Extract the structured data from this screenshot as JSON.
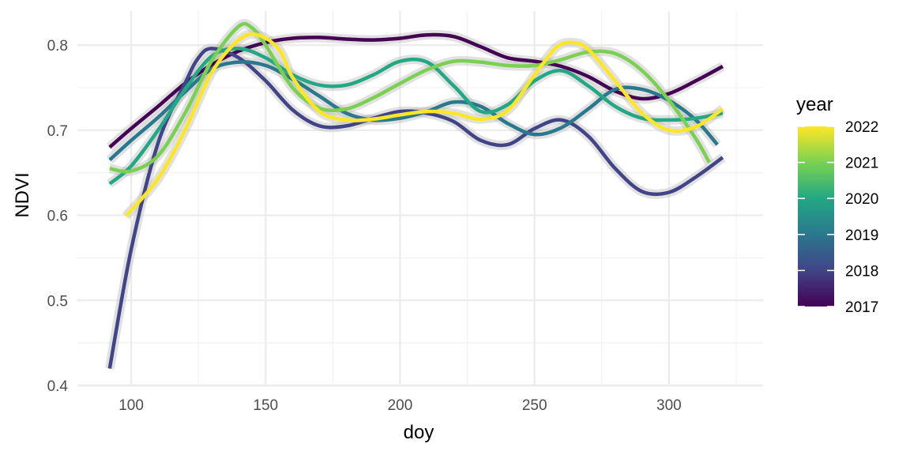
{
  "chart_data": {
    "type": "line",
    "xlabel": "doy",
    "ylabel": "NDVI",
    "xlim": [
      80,
      335
    ],
    "ylim": [
      0.4,
      0.84
    ],
    "x_ticks": [
      100,
      150,
      200,
      250,
      300
    ],
    "y_ticks": [
      0.4,
      0.5,
      0.6,
      0.7,
      0.8
    ],
    "x_tick_labels": [
      "100",
      "150",
      "200",
      "250",
      "300"
    ],
    "y_tick_labels": [
      "0.4",
      "0.5",
      "0.6",
      "0.7",
      "0.8"
    ],
    "grid": true,
    "legend": {
      "title": "year",
      "placement": "right",
      "labels": [
        "2022",
        "2021",
        "2020",
        "2019",
        "2018",
        "2017"
      ],
      "colors": [
        "#FDE725",
        "#7AD151",
        "#22A884",
        "#2A788E",
        "#414487",
        "#440154"
      ]
    },
    "series": [
      {
        "name": "2017",
        "color": "#440154",
        "points": [
          [
            92,
            0.68
          ],
          [
            100,
            0.702
          ],
          [
            110,
            0.728
          ],
          [
            120,
            0.755
          ],
          [
            130,
            0.777
          ],
          [
            140,
            0.793
          ],
          [
            150,
            0.803
          ],
          [
            160,
            0.808
          ],
          [
            170,
            0.809
          ],
          [
            180,
            0.807
          ],
          [
            190,
            0.806
          ],
          [
            200,
            0.808
          ],
          [
            210,
            0.812
          ],
          [
            220,
            0.81
          ],
          [
            230,
            0.798
          ],
          [
            240,
            0.785
          ],
          [
            250,
            0.781
          ],
          [
            260,
            0.775
          ],
          [
            270,
            0.763
          ],
          [
            280,
            0.746
          ],
          [
            290,
            0.737
          ],
          [
            300,
            0.743
          ],
          [
            310,
            0.758
          ],
          [
            320,
            0.775
          ]
        ]
      },
      {
        "name": "2018",
        "color": "#414487",
        "points": [
          [
            92,
            0.42
          ],
          [
            100,
            0.56
          ],
          [
            110,
            0.685
          ],
          [
            120,
            0.755
          ],
          [
            125,
            0.785
          ],
          [
            130,
            0.796
          ],
          [
            140,
            0.785
          ],
          [
            150,
            0.758
          ],
          [
            160,
            0.724
          ],
          [
            170,
            0.705
          ],
          [
            180,
            0.705
          ],
          [
            190,
            0.714
          ],
          [
            200,
            0.722
          ],
          [
            210,
            0.72
          ],
          [
            220,
            0.71
          ],
          [
            230,
            0.688
          ],
          [
            240,
            0.683
          ],
          [
            250,
            0.702
          ],
          [
            260,
            0.712
          ],
          [
            270,
            0.693
          ],
          [
            280,
            0.655
          ],
          [
            290,
            0.628
          ],
          [
            300,
            0.627
          ],
          [
            310,
            0.645
          ],
          [
            320,
            0.668
          ]
        ]
      },
      {
        "name": "2019",
        "color": "#2A788E",
        "points": [
          [
            92,
            0.665
          ],
          [
            100,
            0.688
          ],
          [
            110,
            0.715
          ],
          [
            120,
            0.745
          ],
          [
            130,
            0.772
          ],
          [
            140,
            0.78
          ],
          [
            150,
            0.776
          ],
          [
            160,
            0.76
          ],
          [
            170,
            0.74
          ],
          [
            180,
            0.72
          ],
          [
            190,
            0.712
          ],
          [
            200,
            0.714
          ],
          [
            210,
            0.722
          ],
          [
            220,
            0.733
          ],
          [
            230,
            0.728
          ],
          [
            240,
            0.708
          ],
          [
            250,
            0.695
          ],
          [
            260,
            0.703
          ],
          [
            270,
            0.725
          ],
          [
            280,
            0.748
          ],
          [
            290,
            0.748
          ],
          [
            300,
            0.735
          ],
          [
            310,
            0.712
          ],
          [
            318,
            0.683
          ]
        ]
      },
      {
        "name": "2020",
        "color": "#22A884",
        "points": [
          [
            92,
            0.637
          ],
          [
            100,
            0.658
          ],
          [
            110,
            0.7
          ],
          [
            120,
            0.748
          ],
          [
            130,
            0.787
          ],
          [
            140,
            0.796
          ],
          [
            150,
            0.785
          ],
          [
            160,
            0.765
          ],
          [
            170,
            0.753
          ],
          [
            180,
            0.753
          ],
          [
            190,
            0.765
          ],
          [
            200,
            0.781
          ],
          [
            210,
            0.78
          ],
          [
            220,
            0.752
          ],
          [
            230,
            0.722
          ],
          [
            240,
            0.73
          ],
          [
            250,
            0.758
          ],
          [
            260,
            0.77
          ],
          [
            270,
            0.752
          ],
          [
            280,
            0.728
          ],
          [
            290,
            0.714
          ],
          [
            300,
            0.712
          ],
          [
            310,
            0.714
          ],
          [
            320,
            0.72
          ]
        ]
      },
      {
        "name": "2021",
        "color": "#7AD151",
        "points": [
          [
            92,
            0.655
          ],
          [
            100,
            0.652
          ],
          [
            110,
            0.67
          ],
          [
            120,
            0.72
          ],
          [
            130,
            0.782
          ],
          [
            140,
            0.822
          ],
          [
            145,
            0.82
          ],
          [
            150,
            0.8
          ],
          [
            160,
            0.75
          ],
          [
            170,
            0.726
          ],
          [
            180,
            0.725
          ],
          [
            190,
            0.738
          ],
          [
            200,
            0.755
          ],
          [
            210,
            0.771
          ],
          [
            220,
            0.781
          ],
          [
            230,
            0.78
          ],
          [
            240,
            0.776
          ],
          [
            250,
            0.776
          ],
          [
            260,
            0.783
          ],
          [
            270,
            0.792
          ],
          [
            280,
            0.79
          ],
          [
            290,
            0.77
          ],
          [
            300,
            0.735
          ],
          [
            310,
            0.69
          ],
          [
            315,
            0.662
          ]
        ]
      },
      {
        "name": "2022",
        "color": "#FDE725",
        "points": [
          [
            98,
            0.599
          ],
          [
            110,
            0.643
          ],
          [
            120,
            0.7
          ],
          [
            130,
            0.768
          ],
          [
            140,
            0.806
          ],
          [
            147,
            0.812
          ],
          [
            155,
            0.795
          ],
          [
            160,
            0.762
          ],
          [
            170,
            0.722
          ],
          [
            180,
            0.712
          ],
          [
            190,
            0.713
          ],
          [
            200,
            0.718
          ],
          [
            210,
            0.722
          ],
          [
            220,
            0.72
          ],
          [
            230,
            0.713
          ],
          [
            240,
            0.723
          ],
          [
            250,
            0.765
          ],
          [
            258,
            0.797
          ],
          [
            264,
            0.803
          ],
          [
            270,
            0.795
          ],
          [
            280,
            0.758
          ],
          [
            290,
            0.72
          ],
          [
            300,
            0.7
          ],
          [
            310,
            0.704
          ],
          [
            320,
            0.725
          ]
        ]
      }
    ]
  }
}
